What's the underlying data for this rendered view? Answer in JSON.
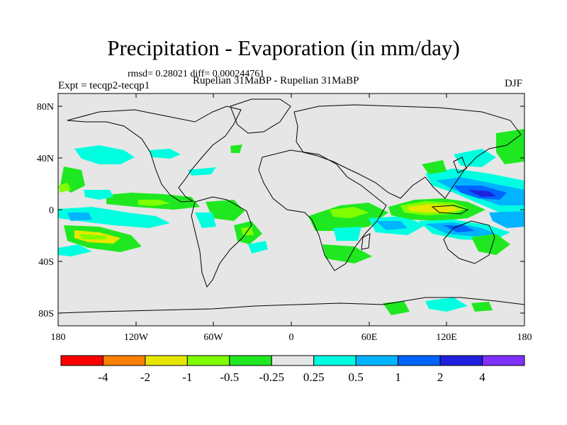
{
  "title": "Precipitation - Evaporation (in mm/day)",
  "stats": "rmsd= 0.28021 diff= 0.000244761",
  "experiment": "Expt = tecqp2-tecqp1",
  "cases": "Rupelian  31MaBP - Rupelian  31MaBP",
  "season": "DJF",
  "lat_ticks": [
    "80N",
    "40N",
    "0",
    "40S",
    "80S"
  ],
  "lon_ticks": [
    "180",
    "120W",
    "60W",
    "0",
    "60E",
    "120E",
    "180"
  ],
  "colorbar": {
    "colors": [
      "#ff0000",
      "#ff8000",
      "#e6e600",
      "#80ff00",
      "#20e820",
      "#e6e6e6",
      "#00ffe0",
      "#00b4ff",
      "#0064ff",
      "#2020e0",
      "#8030ff"
    ],
    "labels": [
      "-4",
      "-2",
      "-1",
      "-0.5",
      "-0.25",
      "0.25",
      "0.5",
      "1",
      "2",
      "4"
    ]
  },
  "palette": {
    "background": "#e6e6e6",
    "neg1": "#e6e600",
    "neg05": "#80ff00",
    "neg025": "#20e820",
    "pos025": "#00ffe0",
    "pos05": "#00b4ff",
    "pos1": "#0064ff",
    "pos2": "#2020e0"
  }
}
